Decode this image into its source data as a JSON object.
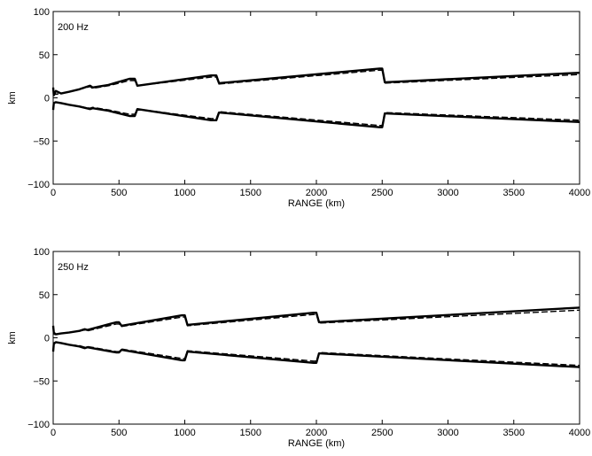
{
  "chart_data": [
    {
      "type": "line",
      "annotation": "200 Hz",
      "xlabel": "RANGE (km)",
      "ylabel": "km",
      "xlim": [
        0,
        4000
      ],
      "ylim": [
        -100,
        100
      ],
      "xticks": [
        0,
        500,
        1000,
        1500,
        2000,
        2500,
        3000,
        3500,
        4000
      ],
      "yticks": [
        -100,
        -50,
        0,
        50,
        100
      ],
      "grid": false,
      "series": [
        {
          "style": "solid",
          "x": [
            0,
            5,
            20,
            60,
            120,
            200,
            280,
            300,
            420,
            580,
            620,
            640,
            1200,
            1240,
            1260,
            2480,
            2500,
            2520,
            4000
          ],
          "y": [
            12,
            3,
            8,
            5,
            7,
            10,
            14,
            12,
            15,
            22,
            22,
            14,
            26,
            26,
            17,
            34,
            34,
            18,
            29
          ]
        },
        {
          "style": "dashed",
          "x": [
            0,
            10,
            60,
            120,
            200,
            280,
            300,
            420,
            580,
            620,
            640,
            1200,
            1240,
            1260,
            2480,
            2500,
            2520,
            4000
          ],
          "y": [
            6,
            4,
            5,
            7,
            10,
            13,
            11,
            14,
            20,
            20,
            14,
            24,
            24,
            16,
            32,
            32,
            17,
            27
          ]
        },
        {
          "style": "solid",
          "x": [
            0,
            5,
            20,
            60,
            120,
            200,
            280,
            300,
            420,
            580,
            620,
            640,
            1200,
            1240,
            1260,
            2480,
            2500,
            2520,
            4000
          ],
          "y": [
            -14,
            -6,
            -5,
            -6,
            -8,
            -10,
            -13,
            -12,
            -15,
            -21,
            -21,
            -13,
            -26,
            -26,
            -17,
            -34,
            -34,
            -18,
            -28
          ]
        },
        {
          "style": "dashed",
          "x": [
            0,
            20,
            60,
            120,
            200,
            280,
            300,
            420,
            580,
            620,
            640,
            1200,
            1240,
            1260,
            2480,
            2500,
            2520,
            4000
          ],
          "y": [
            -6,
            -5,
            -6,
            -8,
            -10,
            -12,
            -11,
            -14,
            -19,
            -19,
            -13,
            -24,
            -24,
            -16,
            -32,
            -32,
            -17,
            -26
          ]
        }
      ]
    },
    {
      "type": "line",
      "annotation": "250 Hz",
      "xlabel": "RANGE (km)",
      "ylabel": "km",
      "xlim": [
        0,
        4000
      ],
      "ylim": [
        -100,
        100
      ],
      "xticks": [
        0,
        500,
        1000,
        1500,
        2000,
        2500,
        3000,
        3500,
        4000
      ],
      "yticks": [
        -100,
        -50,
        0,
        50,
        100
      ],
      "grid": false,
      "series": [
        {
          "style": "solid",
          "x": [
            0,
            5,
            20,
            60,
            120,
            200,
            240,
            260,
            480,
            500,
            520,
            980,
            1000,
            1020,
            1980,
            2000,
            2020,
            4000
          ],
          "y": [
            14,
            6,
            4,
            5,
            6,
            8,
            10,
            9,
            18,
            18,
            14,
            26,
            26,
            15,
            29,
            29,
            18,
            35
          ]
        },
        {
          "style": "dashed",
          "x": [
            0,
            10,
            60,
            120,
            200,
            240,
            260,
            480,
            500,
            520,
            980,
            1000,
            1020,
            1980,
            2000,
            2020,
            4000
          ],
          "y": [
            5,
            4,
            5,
            6,
            8,
            9,
            8,
            16,
            16,
            13,
            24,
            24,
            14,
            27,
            27,
            17,
            32
          ]
        },
        {
          "style": "solid",
          "x": [
            0,
            5,
            20,
            60,
            120,
            200,
            240,
            260,
            480,
            500,
            520,
            980,
            1000,
            1020,
            1980,
            2000,
            2020,
            4000
          ],
          "y": [
            -16,
            -7,
            -5,
            -6,
            -8,
            -10,
            -12,
            -11,
            -17,
            -17,
            -14,
            -26,
            -26,
            -16,
            -29,
            -29,
            -18,
            -34
          ]
        },
        {
          "style": "dashed",
          "x": [
            0,
            20,
            60,
            120,
            200,
            240,
            260,
            480,
            500,
            520,
            980,
            1000,
            1020,
            1980,
            2000,
            2020,
            4000
          ],
          "y": [
            -6,
            -5,
            -6,
            -8,
            -9,
            -11,
            -10,
            -16,
            -16,
            -13,
            -24,
            -24,
            -15,
            -27,
            -27,
            -17,
            -32
          ]
        }
      ]
    }
  ]
}
